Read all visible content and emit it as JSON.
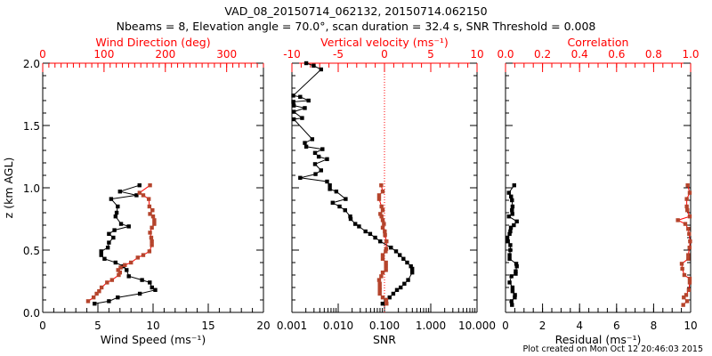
{
  "title": "VAD_08_20150714_062132, 20150714.062150",
  "subtitle": "Nbeams = 8, Elevation angle = 70.0°, scan duration = 32.4 s, SNR Threshold = 0.008",
  "footer": "Plot created on Mon Oct 12 20:46:03 2015",
  "colors": {
    "axis_top": "#ff0000",
    "series_red": "#b5442c",
    "series_black": "#000000"
  },
  "chart_data": [
    {
      "type": "line",
      "ylabel": "z (km AGL)",
      "ylim": [
        0,
        2.0
      ],
      "yticks": [
        "0.0",
        "0.5",
        "1.0",
        "1.5",
        "2.0"
      ],
      "xlabel": "Wind Speed (ms⁻¹)",
      "xlim": [
        0,
        20
      ],
      "xticks": [
        "0",
        "5",
        "10",
        "15",
        "20"
      ],
      "top_xlabel": "Wind Direction (deg)",
      "top_xlim": [
        0,
        360
      ],
      "top_xticks": [
        "0",
        "100",
        "200",
        "300"
      ],
      "series": [
        {
          "name": "Wind Speed",
          "axis": "bottom",
          "color": "black",
          "x": [
            8.77,
            7.0,
            8.5,
            6.2,
            6.8,
            6.7,
            6.6,
            7.1,
            7.8,
            6.5,
            6.0,
            6.4,
            6.0,
            5.9,
            5.3,
            5.3,
            5.6,
            6.6,
            7.3,
            7.6,
            7.8,
            9.0,
            9.7,
            9.9,
            10.2,
            8.8,
            6.8,
            6.0,
            4.7
          ],
          "z": [
            1.02,
            0.97,
            0.94,
            0.91,
            0.85,
            0.8,
            0.77,
            0.71,
            0.69,
            0.66,
            0.63,
            0.6,
            0.56,
            0.52,
            0.49,
            0.46,
            0.43,
            0.4,
            0.37,
            0.34,
            0.29,
            0.26,
            0.24,
            0.2,
            0.18,
            0.15,
            0.12,
            0.09,
            0.07
          ]
        },
        {
          "name": "Wind Direction",
          "axis": "top",
          "color": "red",
          "x": [
            175,
            158,
            164,
            173,
            174,
            179,
            175,
            180,
            182,
            182,
            178,
            175,
            177,
            178,
            178,
            174,
            164,
            155,
            144,
            134,
            127,
            123,
            126,
            124,
            113,
            105,
            96,
            92,
            88,
            83,
            74
          ],
          "z": [
            1.02,
            0.96,
            0.94,
            0.91,
            0.85,
            0.82,
            0.79,
            0.77,
            0.74,
            0.71,
            0.68,
            0.64,
            0.6,
            0.57,
            0.54,
            0.49,
            0.46,
            0.44,
            0.4,
            0.38,
            0.36,
            0.34,
            0.32,
            0.3,
            0.26,
            0.24,
            0.2,
            0.17,
            0.15,
            0.12,
            0.09
          ]
        }
      ]
    },
    {
      "type": "line",
      "ylim": [
        0,
        2.0
      ],
      "xlabel": "SNR",
      "xscale": "log",
      "xlim": [
        0.001,
        10
      ],
      "xticks": [
        "0.001",
        "0.010",
        "0.100",
        "1.000",
        "10.000"
      ],
      "top_xlabel": "Vertical velocity (ms⁻¹)",
      "top_xlim": [
        -10,
        10
      ],
      "top_xticks": [
        "-10",
        "-5",
        "0",
        "5",
        "10"
      ],
      "series": [
        {
          "name": "SNR",
          "axis": "bottom",
          "color": "black",
          "x": [
            0.00204,
            0.00295,
            0.00427,
            0.00107,
            0.00151,
            0.00229,
            0.00107,
            0.0011,
            0.0019,
            0.0011,
            0.00166,
            0.0011,
            0.00275,
            0.0019,
            0.00204,
            0.00457,
            0.00316,
            0.0038,
            0.00575,
            0.00316,
            0.00427,
            0.00324,
            0.00151,
            0.00575,
            0.0066,
            0.0066,
            0.0091,
            0.0145,
            0.0076,
            0.0107,
            0.0141,
            0.0182,
            0.0186,
            0.0234,
            0.0282,
            0.0389,
            0.049,
            0.063,
            0.081,
            0.138,
            0.178,
            0.214,
            0.257,
            0.309,
            0.372,
            0.398,
            0.398,
            0.324,
            0.269,
            0.224,
            0.186,
            0.155,
            0.129,
            0.107,
            0.091
          ],
          "z": [
            2.0,
            1.98,
            1.95,
            1.74,
            1.73,
            1.7,
            1.69,
            1.66,
            1.64,
            1.61,
            1.56,
            1.55,
            1.39,
            1.36,
            1.33,
            1.31,
            1.28,
            1.25,
            1.23,
            1.19,
            1.14,
            1.11,
            1.08,
            1.05,
            1.02,
            0.99,
            0.97,
            0.91,
            0.88,
            0.85,
            0.82,
            0.77,
            0.75,
            0.71,
            0.69,
            0.65,
            0.63,
            0.6,
            0.57,
            0.52,
            0.49,
            0.46,
            0.43,
            0.4,
            0.37,
            0.35,
            0.32,
            0.26,
            0.23,
            0.2,
            0.18,
            0.15,
            0.12,
            0.1,
            0.07
          ]
        },
        {
          "name": "Vertical velocity",
          "axis": "top",
          "color": "red",
          "x": [
            -0.35,
            -0.19,
            -0.58,
            -0.58,
            -0.32,
            -0.19,
            -0.45,
            -0.32,
            -0.19,
            -0.06,
            -0.19,
            0.03,
            0.06,
            0.22,
            0.19,
            0.13,
            -0.19,
            -0.19,
            0.16,
            0.16,
            0.16,
            -0.19,
            -0.35,
            -0.58,
            -0.51,
            -0.51,
            -0.51,
            -0.51,
            -0.19,
            0.19,
            0.22
          ],
          "z": [
            1.02,
            0.97,
            0.94,
            0.91,
            0.85,
            0.82,
            0.79,
            0.77,
            0.74,
            0.71,
            0.68,
            0.65,
            0.62,
            0.57,
            0.51,
            0.49,
            0.46,
            0.43,
            0.4,
            0.37,
            0.34,
            0.32,
            0.29,
            0.26,
            0.23,
            0.2,
            0.18,
            0.15,
            0.12,
            0.1,
            0.07
          ]
        }
      ]
    },
    {
      "type": "line",
      "ylim": [
        0,
        2.0
      ],
      "xlabel": "Residual (ms⁻¹)",
      "xlim": [
        0,
        10
      ],
      "xticks": [
        "0",
        "2",
        "4",
        "6",
        "8",
        "10"
      ],
      "top_xlabel": "Correlation",
      "top_xlim": [
        0,
        1.0
      ],
      "top_xticks": [
        "0.0",
        "0.2",
        "0.4",
        "0.6",
        "0.8",
        "1.0"
      ],
      "series": [
        {
          "name": "Residual",
          "axis": "bottom",
          "color": "black",
          "x": [
            0.47,
            0.18,
            0.3,
            0.35,
            0.38,
            0.35,
            0.37,
            0.18,
            0.61,
            0.45,
            0.29,
            0.26,
            0.22,
            0.1,
            0.13,
            0.26,
            0.26,
            0.22,
            0.22,
            0.58,
            0.61,
            0.55,
            0.55,
            0.32,
            0.22,
            0.38,
            0.38,
            0.51,
            0.5,
            0.32,
            0.35
          ],
          "z": [
            1.02,
            0.96,
            0.93,
            0.9,
            0.85,
            0.82,
            0.79,
            0.77,
            0.73,
            0.7,
            0.68,
            0.65,
            0.63,
            0.6,
            0.57,
            0.54,
            0.5,
            0.46,
            0.43,
            0.39,
            0.37,
            0.33,
            0.31,
            0.29,
            0.24,
            0.2,
            0.17,
            0.14,
            0.12,
            0.09,
            0.06
          ]
        },
        {
          "name": "Correlation",
          "axis": "top",
          "color": "red",
          "x": [
            0.984,
            0.995,
            0.979,
            0.979,
            0.982,
            0.995,
            0.931,
            0.971,
            0.987,
            0.992,
            0.997,
            0.994,
            0.987,
            0.987,
            0.952,
            0.955,
            0.966,
            0.995,
            0.995,
            0.99,
            0.976,
            0.963,
            0.981,
            0.96
          ],
          "z": [
            1.02,
            0.96,
            0.91,
            0.85,
            0.82,
            0.77,
            0.74,
            0.71,
            0.67,
            0.63,
            0.57,
            0.52,
            0.46,
            0.43,
            0.39,
            0.35,
            0.3,
            0.27,
            0.24,
            0.18,
            0.14,
            0.12,
            0.09,
            0.06
          ]
        }
      ]
    }
  ]
}
